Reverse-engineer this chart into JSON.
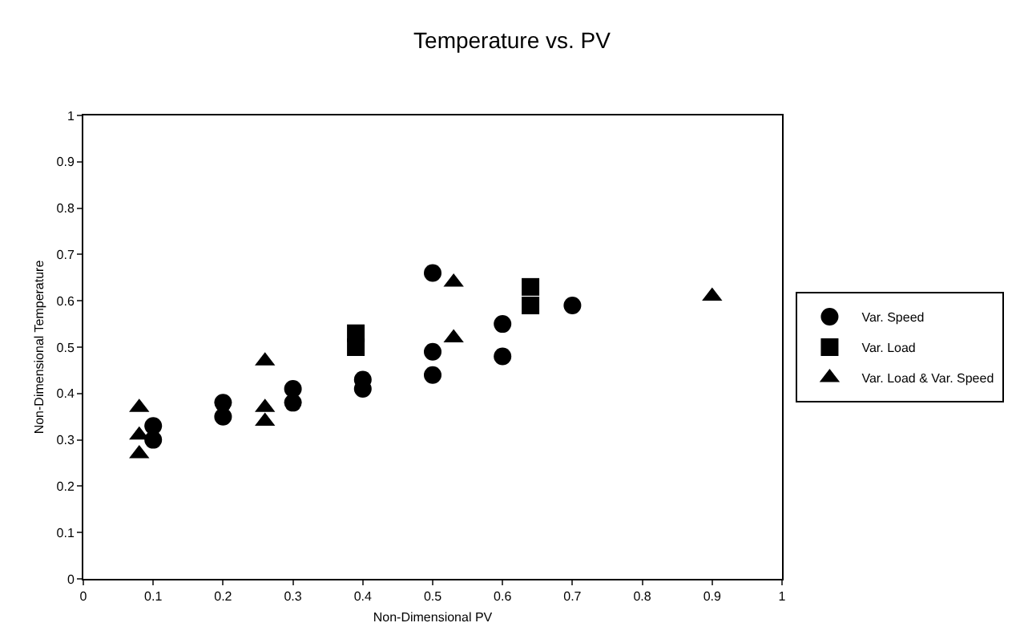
{
  "chart_data": {
    "type": "scatter",
    "title": "Temperature vs. PV",
    "xlabel": "Non-Dimensional PV",
    "ylabel": "Non-Dimensional Temperature",
    "xlim": [
      0,
      1
    ],
    "xticks": [
      0,
      0.1,
      0.2,
      0.3,
      0.4,
      0.5,
      0.6,
      0.7,
      0.8,
      0.9,
      1
    ],
    "ylim": [
      0,
      1
    ],
    "yticks": [
      0,
      0.1,
      0.2,
      0.3,
      0.4,
      0.5,
      0.6,
      0.7,
      0.8,
      0.9,
      1
    ],
    "grid": false,
    "legend": "right",
    "series": [
      {
        "name": "Var. Speed",
        "color": "#000000",
        "marker": "circle",
        "x": [
          0.1,
          0.1,
          0.2,
          0.2,
          0.3,
          0.3,
          0.4,
          0.4,
          0.5,
          0.5,
          0.5,
          0.6,
          0.6,
          0.7
        ],
        "values": [
          0.33,
          0.3,
          0.38,
          0.35,
          0.41,
          0.38,
          0.43,
          0.41,
          0.66,
          0.49,
          0.44,
          0.55,
          0.48,
          0.59
        ]
      },
      {
        "name": "Var. Load",
        "color": "#000000",
        "marker": "square",
        "x": [
          0.39,
          0.39,
          0.64,
          0.64
        ],
        "values": [
          0.53,
          0.5,
          0.63,
          0.59
        ]
      },
      {
        "name": "Var. Load & Var. Speed",
        "color": "#000000",
        "marker": "triangle",
        "x": [
          0.08,
          0.08,
          0.08,
          0.26,
          0.26,
          0.26,
          0.53,
          0.53,
          0.9
        ],
        "values": [
          0.37,
          0.31,
          0.27,
          0.47,
          0.37,
          0.34,
          0.64,
          0.52,
          0.61
        ]
      }
    ]
  }
}
